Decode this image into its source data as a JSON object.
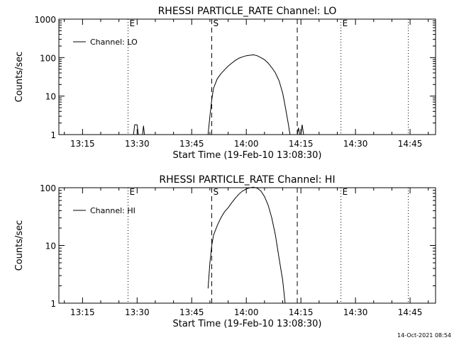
{
  "footer": {
    "timestamp": "14-Oct-2021 08:54"
  },
  "chart_data": [
    {
      "type": "line",
      "title": "RHESSI PARTICLE_RATE Channel: LO",
      "xlabel": "Start Time (19-Feb-10 13:08:30)",
      "ylabel": "Counts/sec",
      "yscale": "log",
      "xlim": [
        "13:08:30",
        "14:52:00"
      ],
      "ylim": [
        1,
        1000
      ],
      "xticks": [
        "13:15",
        "13:30",
        "13:45",
        "14:00",
        "14:15",
        "14:30",
        "14:45"
      ],
      "yticks": [
        1,
        10,
        100,
        1000
      ],
      "yticklabels": [
        "1",
        "10",
        "100",
        "1000"
      ],
      "legend": {
        "placement": "top-left",
        "label": "Channel: LO"
      },
      "markers": [
        {
          "time": "13:27:30",
          "style": "dotted",
          "label": "E"
        },
        {
          "time": "13:50:30",
          "style": "dashed",
          "label": "S"
        },
        {
          "time": "14:14:00",
          "style": "dashed",
          "label": ""
        },
        {
          "time": "14:26:00",
          "style": "dotted",
          "label": "E"
        },
        {
          "time": "14:44:30",
          "style": "dotted",
          "label": ""
        }
      ],
      "series": [
        {
          "segments": [
            [
              [
                "13:29:00",
                1
              ],
              [
                "13:29:20",
                1.8
              ],
              [
                "13:30:00",
                1.8
              ],
              [
                "13:30:20",
                1
              ]
            ],
            [
              [
                "13:31:30",
                1
              ],
              [
                "13:31:45",
                1.7
              ],
              [
                "13:32:00",
                1
              ]
            ],
            [
              [
                "13:49:30",
                1
              ],
              [
                "13:50:00",
                3
              ],
              [
                "13:50:30",
                8
              ],
              [
                "13:51:00",
                16
              ],
              [
                "13:52:00",
                28
              ],
              [
                "13:53:00",
                38
              ],
              [
                "13:54:00",
                48
              ],
              [
                "13:55:00",
                60
              ],
              [
                "13:56:00",
                72
              ],
              [
                "13:57:00",
                85
              ],
              [
                "13:58:00",
                97
              ],
              [
                "13:59:00",
                105
              ],
              [
                "14:00:00",
                112
              ],
              [
                "14:01:00",
                115
              ],
              [
                "14:02:00",
                118
              ],
              [
                "14:03:00",
                112
              ],
              [
                "14:04:00",
                100
              ],
              [
                "14:05:00",
                88
              ],
              [
                "14:06:00",
                72
              ],
              [
                "14:07:00",
                55
              ],
              [
                "14:08:00",
                40
              ],
              [
                "14:09:00",
                25
              ],
              [
                "14:10:00",
                12
              ],
              [
                "14:10:45",
                5
              ],
              [
                "14:11:30",
                2
              ],
              [
                "14:12:00",
                1
              ]
            ],
            [
              [
                "14:14:00",
                1
              ],
              [
                "14:14:20",
                1.5
              ],
              [
                "14:14:40",
                1
              ]
            ],
            [
              [
                "14:15:00",
                1
              ],
              [
                "14:15:20",
                1.8
              ],
              [
                "14:15:45",
                1
              ]
            ]
          ]
        }
      ]
    },
    {
      "type": "line",
      "title": "RHESSI PARTICLE_RATE Channel: HI",
      "xlabel": "Start Time (19-Feb-10 13:08:30)",
      "ylabel": "Counts/sec",
      "yscale": "log",
      "xlim": [
        "13:08:30",
        "14:52:00"
      ],
      "ylim": [
        1,
        100
      ],
      "xticks": [
        "13:15",
        "13:30",
        "13:45",
        "14:00",
        "14:15",
        "14:30",
        "14:45"
      ],
      "yticks": [
        1,
        10,
        100
      ],
      "yticklabels": [
        "1",
        "10",
        "100"
      ],
      "legend": {
        "placement": "top-left",
        "label": "Channel: HI"
      },
      "markers": [
        {
          "time": "13:27:30",
          "style": "dotted",
          "label": "E"
        },
        {
          "time": "13:50:30",
          "style": "dashed",
          "label": "S"
        },
        {
          "time": "14:14:00",
          "style": "dashed",
          "label": ""
        },
        {
          "time": "14:26:00",
          "style": "dotted",
          "label": "E"
        },
        {
          "time": "14:44:30",
          "style": "dotted",
          "label": ""
        }
      ],
      "series": [
        {
          "segments": [
            [
              [
                "13:49:30",
                1.8
              ],
              [
                "13:50:00",
                5
              ],
              [
                "13:50:30",
                10
              ],
              [
                "13:51:00",
                15
              ],
              [
                "13:52:00",
                22
              ],
              [
                "13:53:00",
                30
              ],
              [
                "13:54:00",
                38
              ],
              [
                "13:55:00",
                45
              ],
              [
                "13:56:00",
                55
              ],
              [
                "13:57:00",
                66
              ],
              [
                "13:58:00",
                78
              ],
              [
                "13:59:00",
                88
              ],
              [
                "14:00:00",
                95
              ],
              [
                "14:01:00",
                100
              ],
              [
                "14:02:00",
                102
              ],
              [
                "14:03:00",
                98
              ],
              [
                "14:04:00",
                88
              ],
              [
                "14:05:00",
                70
              ],
              [
                "14:06:00",
                50
              ],
              [
                "14:07:00",
                30
              ],
              [
                "14:08:00",
                15
              ],
              [
                "14:09:00",
                6
              ],
              [
                "14:10:00",
                2.5
              ],
              [
                "14:10:40",
                1
              ]
            ]
          ]
        }
      ]
    }
  ]
}
